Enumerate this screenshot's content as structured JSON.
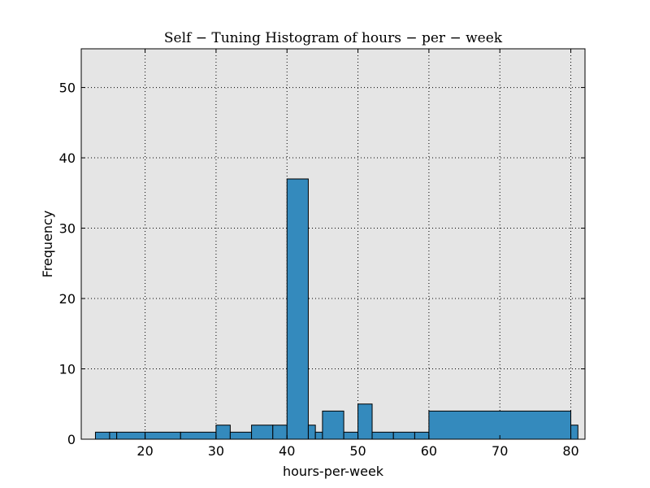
{
  "chart_data": {
    "type": "bar",
    "title": "Self − Tuning Histogram of hours − per − week",
    "xlabel": "hours-per-week",
    "ylabel": "Frequency",
    "xlim": [
      11,
      82
    ],
    "ylim": [
      0,
      55.5
    ],
    "xticks": [
      20,
      30,
      40,
      50,
      60,
      70,
      80
    ],
    "yticks": [
      0,
      10,
      20,
      30,
      40,
      50
    ],
    "grid": true,
    "bins": [
      {
        "start": 13,
        "end": 15,
        "count": 1
      },
      {
        "start": 15,
        "end": 16,
        "count": 1
      },
      {
        "start": 16,
        "end": 20,
        "count": 1
      },
      {
        "start": 20,
        "end": 25,
        "count": 1
      },
      {
        "start": 25,
        "end": 30,
        "count": 1
      },
      {
        "start": 30,
        "end": 32,
        "count": 2
      },
      {
        "start": 32,
        "end": 35,
        "count": 1
      },
      {
        "start": 35,
        "end": 38,
        "count": 2
      },
      {
        "start": 38,
        "end": 40,
        "count": 2
      },
      {
        "start": 40,
        "end": 43,
        "count": 37
      },
      {
        "start": 43,
        "end": 44,
        "count": 2
      },
      {
        "start": 44,
        "end": 45,
        "count": 1
      },
      {
        "start": 45,
        "end": 48,
        "count": 4
      },
      {
        "start": 48,
        "end": 50,
        "count": 1
      },
      {
        "start": 50,
        "end": 52,
        "count": 5
      },
      {
        "start": 52,
        "end": 55,
        "count": 1
      },
      {
        "start": 55,
        "end": 58,
        "count": 1
      },
      {
        "start": 58,
        "end": 60,
        "count": 1
      },
      {
        "start": 60,
        "end": 80,
        "count": 4
      },
      {
        "start": 80,
        "end": 81,
        "count": 2
      }
    ],
    "colors": {
      "bar_fill": "#348ABD",
      "bar_edge": "#000000",
      "plot_background": "#E5E5E5",
      "grid": "#000000"
    }
  }
}
